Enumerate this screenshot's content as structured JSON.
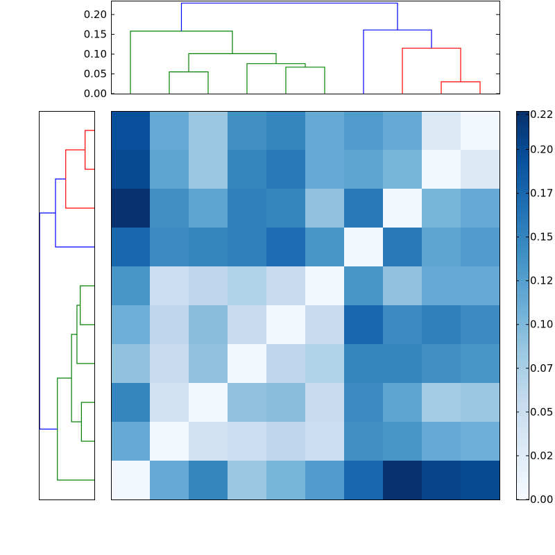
{
  "chart_data": [
    {
      "type": "dendrogram",
      "orientation": "top",
      "ylim": [
        0,
        0.235
      ],
      "yticks": [
        "0.00",
        "0.05",
        "0.10",
        "0.15",
        "0.20"
      ],
      "ytick_values": [
        0,
        0.05,
        0.1,
        0.15,
        0.2
      ],
      "leaf_count": 10,
      "links": [
        {
          "icoord": [
            15,
            15,
            25,
            25
          ],
          "dcoord": [
            0,
            0.055,
            0.055,
            0
          ],
          "color": "#008000"
        },
        {
          "icoord": [
            45,
            45,
            55,
            55
          ],
          "dcoord": [
            0,
            0.067,
            0.067,
            0
          ],
          "color": "#008000"
        },
        {
          "icoord": [
            35,
            35,
            50,
            50
          ],
          "dcoord": [
            0,
            0.076,
            0.076,
            0.067
          ],
          "color": "#008000"
        },
        {
          "icoord": [
            20,
            20,
            42.5,
            42.5
          ],
          "dcoord": [
            0.055,
            0.101,
            0.101,
            0.076
          ],
          "color": "#008000"
        },
        {
          "icoord": [
            5,
            5,
            31.25,
            31.25
          ],
          "dcoord": [
            0,
            0.158,
            0.158,
            0.101
          ],
          "color": "#008000"
        },
        {
          "icoord": [
            85,
            85,
            95,
            95
          ],
          "dcoord": [
            0,
            0.03,
            0.03,
            0
          ],
          "color": "#ff0000"
        },
        {
          "icoord": [
            75,
            75,
            90,
            90
          ],
          "dcoord": [
            0,
            0.115,
            0.115,
            0.03
          ],
          "color": "#ff0000"
        },
        {
          "icoord": [
            65,
            65,
            82.5,
            82.5
          ],
          "dcoord": [
            0,
            0.161,
            0.161,
            0.115
          ],
          "color": "#0000ff"
        },
        {
          "icoord": [
            18.125,
            18.125,
            73.75,
            73.75
          ],
          "dcoord": [
            0.158,
            0.229,
            0.229,
            0.161
          ],
          "color": "#0000ff"
        }
      ]
    },
    {
      "type": "dendrogram",
      "orientation": "left",
      "leaf_count": 10,
      "links": [
        {
          "icoord": [
            5,
            5,
            15,
            15
          ],
          "dcoord": [
            0,
            0.0735,
            0.0735,
            0
          ],
          "color": "#ff0000"
        },
        {
          "icoord": [
            10,
            10,
            25,
            25
          ],
          "dcoord": [
            0.0735,
            0.227,
            0.227,
            0
          ],
          "color": "#ff0000"
        },
        {
          "icoord": [
            17.5,
            17.5,
            35,
            35
          ],
          "dcoord": [
            0.227,
            0.308,
            0.308,
            0
          ],
          "color": "#0000ff"
        },
        {
          "icoord": [
            45,
            45,
            55,
            55
          ],
          "dcoord": [
            0,
            0.112,
            0.112,
            0
          ],
          "color": "#008000"
        },
        {
          "icoord": [
            50,
            50,
            65,
            65
          ],
          "dcoord": [
            0.112,
            0.138,
            0.138,
            0
          ],
          "color": "#008000"
        },
        {
          "icoord": [
            75,
            75,
            85,
            85
          ],
          "dcoord": [
            0,
            0.1025,
            0.1025,
            0
          ],
          "color": "#008000"
        },
        {
          "icoord": [
            57.5,
            57.5,
            80,
            80
          ],
          "dcoord": [
            0.138,
            0.181,
            0.181,
            0.1025
          ],
          "color": "#008000"
        },
        {
          "icoord": [
            68.75,
            68.75,
            95,
            95
          ],
          "dcoord": [
            0.181,
            0.293,
            0.293,
            0
          ],
          "color": "#008000"
        },
        {
          "icoord": [
            26.25,
            26.25,
            81.875,
            81.875
          ],
          "dcoord": [
            0.308,
            0.434,
            0.434,
            0.293
          ],
          "color": "#0000ff"
        }
      ]
    },
    {
      "type": "heatmap",
      "rows": 10,
      "cols": 10,
      "values": [
        [
          0.195,
          0.115,
          0.085,
          0.14,
          0.15,
          0.115,
          0.13,
          0.115,
          0.03,
          0.005
        ],
        [
          0.2,
          0.12,
          0.085,
          0.15,
          0.16,
          0.115,
          0.12,
          0.105,
          0.005,
          0.03
        ],
        [
          0.22,
          0.14,
          0.12,
          0.155,
          0.15,
          0.09,
          0.16,
          0.005,
          0.105,
          0.115
        ],
        [
          0.175,
          0.145,
          0.15,
          0.155,
          0.17,
          0.135,
          0.005,
          0.16,
          0.12,
          0.13
        ],
        [
          0.135,
          0.05,
          0.06,
          0.07,
          0.055,
          0.005,
          0.135,
          0.09,
          0.115,
          0.115
        ],
        [
          0.11,
          0.06,
          0.095,
          0.055,
          0.005,
          0.055,
          0.175,
          0.145,
          0.155,
          0.145
        ],
        [
          0.09,
          0.055,
          0.09,
          0.005,
          0.06,
          0.07,
          0.15,
          0.15,
          0.14,
          0.135
        ],
        [
          0.15,
          0.045,
          0.005,
          0.09,
          0.095,
          0.055,
          0.145,
          0.12,
          0.08,
          0.085
        ],
        [
          0.115,
          0.005,
          0.045,
          0.05,
          0.06,
          0.05,
          0.14,
          0.135,
          0.115,
          0.11
        ],
        [
          0.005,
          0.115,
          0.15,
          0.085,
          0.105,
          0.13,
          0.175,
          0.22,
          0.205,
          0.2
        ]
      ],
      "colormap": "Blues",
      "vmin": 0,
      "vmax": 0.222
    },
    {
      "type": "colorbar",
      "colormap": "Blues",
      "ylim": [
        0,
        0.222
      ],
      "tick_values": [
        0,
        0.025,
        0.05,
        0.075,
        0.1,
        0.125,
        0.15,
        0.175,
        0.2,
        0.22
      ],
      "tick_labels": [
        "0.00",
        "0.02",
        "0.05",
        "0.07",
        "0.10",
        "0.12",
        "0.15",
        "0.17",
        "0.20",
        "0.22"
      ]
    }
  ]
}
